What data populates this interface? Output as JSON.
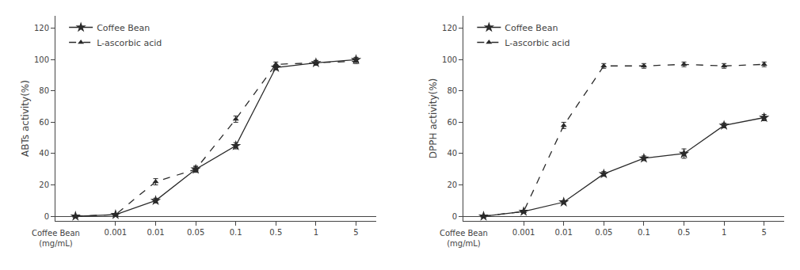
{
  "chart_data": [
    {
      "type": "line",
      "y_label": "ABTs activity(%)",
      "categories": [
        null,
        "0.001",
        "0.01",
        "0.05",
        "0.1",
        "0.5",
        "1",
        "5"
      ],
      "series": [
        {
          "name": "Coffee Bean",
          "color": "#2a2a2a",
          "marker": "star",
          "line_style": "solid",
          "values": [
            0,
            1,
            10,
            30,
            45,
            95,
            98,
            100
          ],
          "errors": [
            0,
            0.5,
            1.5,
            2,
            2,
            1.5,
            1.5,
            1.5
          ]
        },
        {
          "name": "L-ascorbic acid",
          "color": "#2a2a2a",
          "marker": "triangle-up",
          "line_style": "dash",
          "values": [
            0,
            1,
            22,
            30,
            62,
            97,
            98,
            99
          ],
          "errors": [
            0,
            0.5,
            2,
            1.5,
            2,
            1.5,
            1.5,
            1.5
          ]
        }
      ],
      "ylim": [
        -3,
        128
      ],
      "yticks": [
        0,
        20,
        40,
        60,
        80,
        100,
        120
      ],
      "grid": false,
      "legend": "upper left",
      "annotations": [
        "Coffee Bean\n(mg/mL)"
      ]
    },
    {
      "type": "line",
      "y_label": "DPPH activity(%)",
      "categories": [
        null,
        "0.001",
        "0.01",
        "0.05",
        "0.1",
        "0.5",
        "1",
        "5"
      ],
      "series": [
        {
          "name": "Coffee Bean",
          "color": "#2a2a2a",
          "marker": "star",
          "line_style": "solid",
          "values": [
            0,
            3,
            9,
            27,
            37,
            40,
            58,
            63
          ],
          "errors": [
            0,
            0.5,
            1,
            1.5,
            1.5,
            3,
            1.5,
            2
          ]
        },
        {
          "name": "L-ascorbic acid",
          "color": "#2a2a2a",
          "marker": "triangle-up",
          "line_style": "dash",
          "values": [
            0,
            3,
            58,
            96,
            96,
            97,
            96,
            97
          ],
          "errors": [
            0,
            0.5,
            2,
            1.5,
            1.5,
            1.5,
            1.5,
            1.5
          ]
        }
      ],
      "ylim": [
        -3,
        128
      ],
      "yticks": [
        0,
        20,
        40,
        60,
        80,
        100,
        120
      ],
      "grid": false,
      "legend": "upper left",
      "annotations": [
        "Coffee Bean\n(mg/mL)"
      ]
    }
  ]
}
